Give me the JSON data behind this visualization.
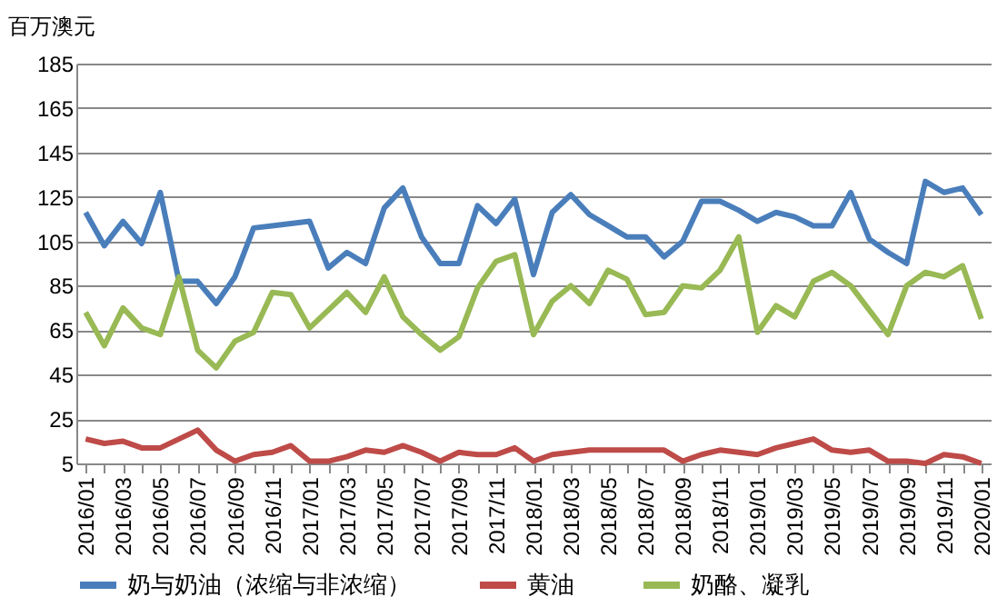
{
  "chart_data": {
    "type": "line",
    "ylabel": "百万澳元",
    "categories": [
      "2016/01",
      null,
      "2016/03",
      null,
      "2016/05",
      null,
      "2016/07",
      null,
      "2016/09",
      null,
      "2016/11",
      null,
      "2017/01",
      null,
      "2017/03",
      null,
      "2017/05",
      null,
      "2017/07",
      null,
      "2017/09",
      null,
      "2017/11",
      null,
      "2018/01",
      null,
      "2018/03",
      null,
      "2018/05",
      null,
      "2018/07",
      null,
      "2018/09",
      null,
      "2018/11",
      null,
      "2019/01",
      null,
      "2019/03",
      null,
      "2019/05",
      null,
      "2019/07",
      null,
      "2019/09",
      null,
      "2019/11",
      null,
      "2020/01"
    ],
    "series": [
      {
        "name": "奶与奶油（浓缩与非浓缩）",
        "color": "#4a7ebb",
        "values": [
          118,
          103,
          114,
          104,
          127,
          87,
          87,
          77,
          89,
          111,
          112,
          113,
          114,
          93,
          100,
          95,
          120,
          129,
          107,
          95,
          95,
          121,
          113,
          124,
          90,
          118,
          126,
          117,
          112,
          107,
          107,
          98,
          105,
          123,
          123,
          119,
          114,
          118,
          116,
          112,
          112,
          127,
          106,
          100,
          95,
          132,
          127,
          129,
          117
        ]
      },
      {
        "name": "黄油",
        "color": "#be4b48",
        "values": [
          16,
          14,
          15,
          12,
          12,
          16,
          20,
          11,
          6,
          9,
          10,
          13,
          6,
          6,
          8,
          11,
          10,
          13,
          10,
          6,
          10,
          9,
          9,
          12,
          6,
          9,
          10,
          11,
          11,
          11,
          11,
          11,
          6,
          9,
          11,
          10,
          9,
          12,
          14,
          16,
          11,
          10,
          11,
          6,
          6,
          5,
          9,
          8,
          5
        ]
      },
      {
        "name": "奶酪、凝乳",
        "color": "#98b954",
        "values": [
          73,
          58,
          75,
          66,
          63,
          89,
          56,
          48,
          60,
          64,
          82,
          81,
          66,
          74,
          82,
          73,
          89,
          71,
          63,
          56,
          62,
          84,
          96,
          99,
          63,
          78,
          85,
          77,
          92,
          88,
          72,
          73,
          85,
          84,
          92,
          107,
          64,
          76,
          71,
          87,
          91,
          85,
          74,
          63,
          85,
          91,
          89,
          94,
          70
        ]
      }
    ],
    "ylim": [
      5,
      185
    ],
    "yticks": [
      5,
      25,
      45,
      65,
      85,
      105,
      125,
      145,
      165,
      185
    ],
    "grid": "y",
    "legend": "bottom",
    "marker": "none",
    "line_style": "solid"
  }
}
